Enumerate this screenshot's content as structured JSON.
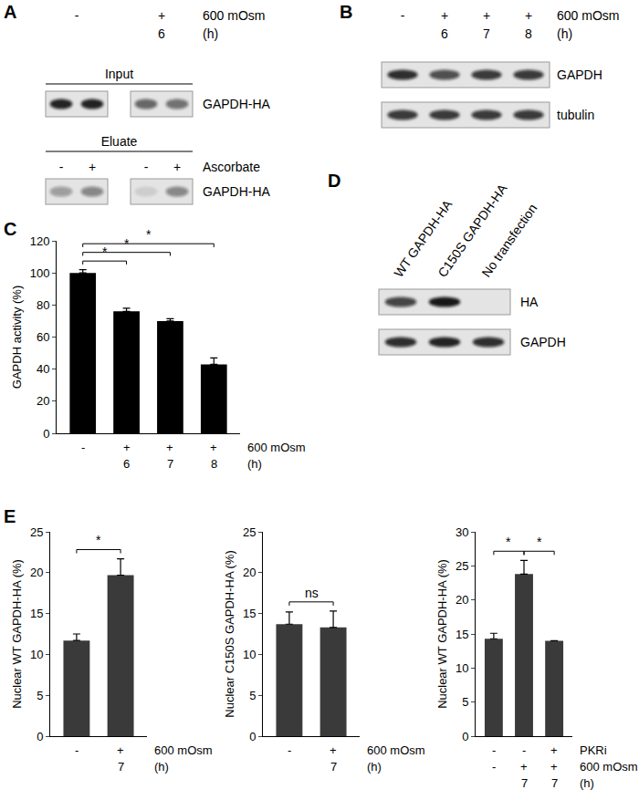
{
  "blots": [
    {
      "panel": "A",
      "header": [
        {
          "label": "600 mOsm",
          "cells": [
            "-",
            "+"
          ]
        },
        {
          "label": "(h)",
          "cells": [
            null,
            "6"
          ]
        }
      ],
      "sections": [
        {
          "title": "Input",
          "rows": [
            {
              "label": "GAPDH-HA",
              "intensity": [
                0.9,
                0.9,
                0.6,
                0.55
              ]
            }
          ]
        },
        {
          "title": "Eluate",
          "lane_header": {
            "label": "Ascorbate",
            "cells": [
              "-",
              "+",
              "-",
              "+"
            ]
          },
          "rows": [
            {
              "label": "GAPDH-HA",
              "intensity": [
                0.35,
                0.45,
                0.1,
                0.45
              ]
            }
          ]
        }
      ]
    },
    {
      "panel": "B",
      "header": [
        {
          "label": "600 mOsm",
          "cells": [
            "-",
            "+",
            "+",
            "+"
          ]
        },
        {
          "label": "(h)",
          "cells": [
            null,
            "6",
            "7",
            "8"
          ]
        }
      ],
      "sections": [
        {
          "rows": [
            {
              "label": "GAPDH",
              "intensity": [
                0.85,
                0.7,
                0.8,
                0.8
              ]
            },
            {
              "label": "tubulin",
              "intensity": [
                0.8,
                0.8,
                0.8,
                0.8
              ]
            }
          ]
        }
      ]
    },
    {
      "panel": "D",
      "columns": [
        "WT GAPDH-HA",
        "C150S GAPDH-HA",
        "No transfection"
      ],
      "sections": [
        {
          "rows": [
            {
              "label": "HA",
              "intensity": [
                0.75,
                0.95,
                0
              ]
            },
            {
              "label": "GAPDH",
              "intensity": [
                0.85,
                0.9,
                0.85
              ]
            }
          ]
        }
      ]
    }
  ],
  "chart_data": [
    {
      "panel": "C",
      "type": "bar",
      "values": [
        100,
        76,
        70,
        43
      ],
      "errors": [
        2,
        2,
        1.5,
        4
      ],
      "color": "#000000",
      "y_label": "GAPDH activity (%)",
      "ylim": [
        0,
        120
      ],
      "yticks": [
        0,
        20,
        40,
        60,
        80,
        100,
        120
      ],
      "grid": false,
      "tick_labels": "y",
      "conditions": [
        {
          "label": "600 mOsm",
          "cells": [
            "-",
            "+",
            "+",
            "+"
          ]
        },
        {
          "label": "(h)",
          "cells": [
            null,
            "6",
            "7",
            "8"
          ]
        }
      ],
      "significance": [
        {
          "from": 0,
          "to": 1,
          "label": "*"
        },
        {
          "from": 0,
          "to": 2,
          "label": "*"
        },
        {
          "from": 0,
          "to": 3,
          "label": "*"
        }
      ]
    },
    {
      "panel": "E",
      "type": "bar",
      "values": [
        11.7,
        19.7
      ],
      "errors": [
        0.8,
        2.0
      ],
      "color": "#3a3a3a",
      "y_label": "Nuclear WT GAPDH-HA (%)",
      "ylim": [
        0,
        25
      ],
      "yticks": [
        0,
        5,
        10,
        15,
        20,
        25
      ],
      "grid": false,
      "tick_labels": "y",
      "conditions": [
        {
          "label": "600 mOsm",
          "cells": [
            "-",
            "+"
          ]
        },
        {
          "label": "(h)",
          "cells": [
            null,
            "7"
          ]
        }
      ],
      "significance": [
        {
          "from": 0,
          "to": 1,
          "label": "*"
        }
      ]
    },
    {
      "type": "bar",
      "values": [
        13.7,
        13.3
      ],
      "errors": [
        1.5,
        2.0
      ],
      "color": "#3a3a3a",
      "y_label": "Nuclear C150S GAPDH-HA (%)",
      "ylim": [
        0,
        25
      ],
      "yticks": [
        0,
        5,
        10,
        15,
        20,
        25
      ],
      "grid": false,
      "tick_labels": "y",
      "conditions": [
        {
          "label": "600 mOsm",
          "cells": [
            "-",
            "+"
          ]
        },
        {
          "label": "(h)",
          "cells": [
            null,
            "7"
          ]
        }
      ],
      "significance": [
        {
          "from": 0,
          "to": 1,
          "label": "ns"
        }
      ]
    },
    {
      "type": "bar",
      "values": [
        14.3,
        23.8,
        14.0
      ],
      "errors": [
        0.8,
        2.0,
        0
      ],
      "color": "#3a3a3a",
      "y_label": "Nuclear WT GAPDH-HA (%)",
      "ylim": [
        0,
        30
      ],
      "yticks": [
        0,
        5,
        10,
        15,
        20,
        25,
        30
      ],
      "grid": false,
      "tick_labels": "y",
      "conditions": [
        {
          "label": "PKRi",
          "cells": [
            "-",
            "-",
            "+"
          ]
        },
        {
          "label": "600 mOsm",
          "cells": [
            "-",
            "+",
            "+"
          ]
        },
        {
          "label": "(h)",
          "cells": [
            null,
            "7",
            "7"
          ]
        }
      ],
      "significance": [
        {
          "from": 0,
          "to": 1,
          "label": "*"
        },
        {
          "from": 1,
          "to": 2,
          "label": "*"
        }
      ]
    }
  ]
}
